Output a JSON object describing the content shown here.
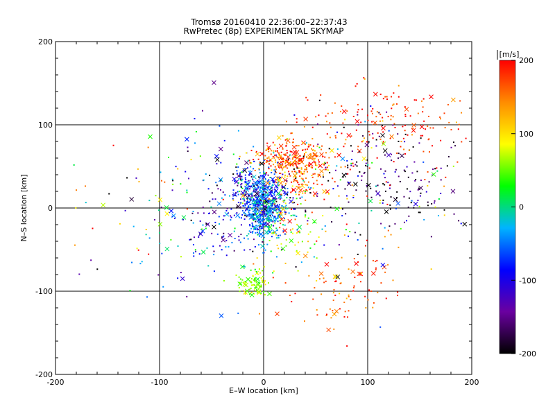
{
  "chart_data": {
    "type": "scatter",
    "title": "Tromsø 20160410 22:36:00–22:37:43",
    "subtitle": "RwPretec (8p) EXPERIMENTAL SKYMAP",
    "xlabel": "E–W location [km]",
    "ylabel": "N–S location [km]",
    "xlim": [
      -200,
      200
    ],
    "ylim": [
      -200,
      200
    ],
    "x_ticks": [
      "-200",
      "-100",
      "0",
      "100",
      "200"
    ],
    "y_ticks": [
      "-200",
      "-100",
      "0",
      "100",
      "200"
    ],
    "grid_lines": [
      -100,
      0,
      100
    ],
    "colorbar": {
      "unit": "[m/s]",
      "range": [
        -200,
        200
      ],
      "ticks": [
        "200",
        "100",
        "0",
        "-100",
        "-200"
      ],
      "colors": [
        "#000000",
        "#6a00a0",
        "#0000ff",
        "#00b4ff",
        "#00ff00",
        "#ffff00",
        "#ff8c00",
        "#ff0000"
      ]
    },
    "marker_kinds": [
      "dot",
      "cross"
    ],
    "point_count": 2200,
    "clusters": [
      {
        "x": 0,
        "y": 0,
        "sx": 10,
        "sy": 18,
        "n": 500,
        "v": -40,
        "sv": 30
      },
      {
        "x": -5,
        "y": 15,
        "sx": 18,
        "sy": 20,
        "n": 250,
        "v": -100,
        "sv": 50
      },
      {
        "x": 25,
        "y": 60,
        "sx": 18,
        "sy": 10,
        "n": 200,
        "v": 170,
        "sv": 35
      },
      {
        "x": 40,
        "y": 40,
        "sx": 15,
        "sy": 15,
        "n": 140,
        "v": 150,
        "sv": 40
      },
      {
        "x": 120,
        "y": 100,
        "sx": 50,
        "sy": 25,
        "n": 180,
        "v": 180,
        "sv": 30
      },
      {
        "x": 120,
        "y": 40,
        "sx": 40,
        "sy": 35,
        "n": 160,
        "v": -170,
        "sv": 40
      },
      {
        "x": 80,
        "y": -95,
        "sx": 25,
        "sy": 25,
        "n": 90,
        "v": 160,
        "sv": 30
      },
      {
        "x": -8,
        "y": -90,
        "sx": 8,
        "sy": 8,
        "n": 90,
        "v": 60,
        "sv": 20
      },
      {
        "x": 25,
        "y": -20,
        "sx": 15,
        "sy": 25,
        "n": 90,
        "v": 90,
        "sv": 60
      },
      {
        "x": -40,
        "y": 0,
        "sx": 35,
        "sy": 45,
        "n": 180,
        "v": -80,
        "sv": 80
      },
      {
        "x": -110,
        "y": -10,
        "sx": 40,
        "sy": 60,
        "n": 60,
        "v": 0,
        "sv": 140
      },
      {
        "x": 60,
        "y": 10,
        "sx": 60,
        "sy": 50,
        "n": 160,
        "v": 0,
        "sv": 140
      }
    ]
  }
}
